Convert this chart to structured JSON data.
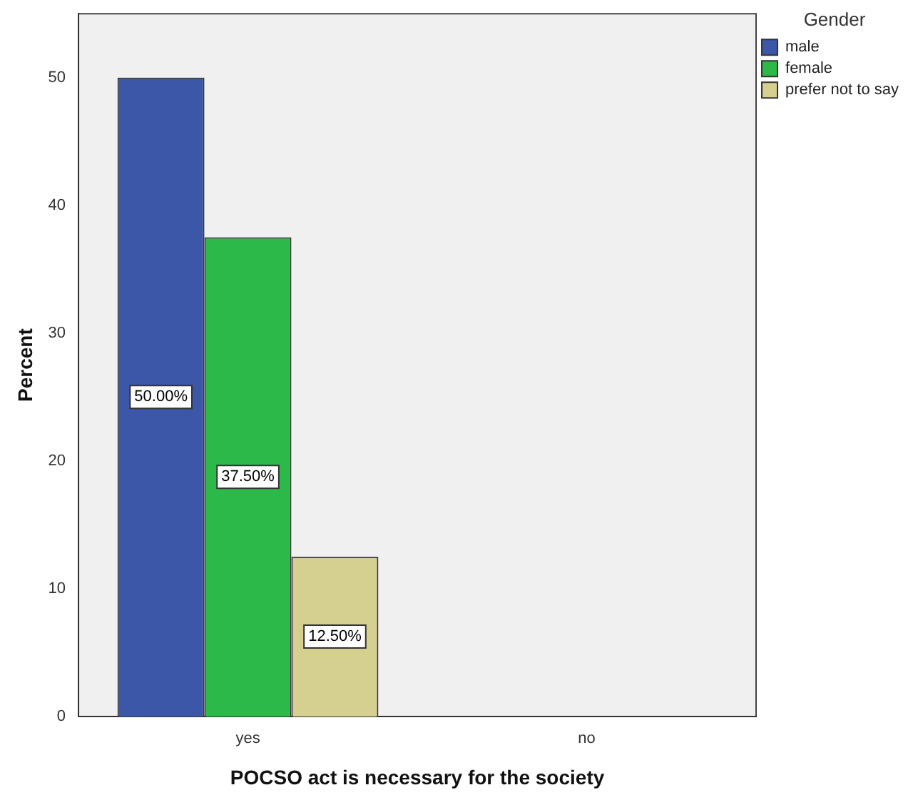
{
  "chart_data": {
    "type": "bar",
    "xlabel": "POCSO act is necessary for the society",
    "ylabel": "Percent",
    "legend_title": "Gender",
    "legend": "top right",
    "grid": false,
    "categories": [
      "yes",
      "no"
    ],
    "series": [
      {
        "name": "male",
        "color": "#3c56a8",
        "values": [
          50,
          null
        ],
        "value_labels": [
          "50.00%",
          null
        ]
      },
      {
        "name": "female",
        "color": "#2db84a",
        "values": [
          37.5,
          null
        ],
        "value_labels": [
          "37.50%",
          null
        ]
      },
      {
        "name": "prefer not to say",
        "color": "#d5d08f",
        "values": [
          12.5,
          null
        ],
        "value_labels": [
          "12.50%",
          null
        ]
      }
    ],
    "ylim": [
      0,
      55
    ],
    "yticks": [
      0,
      10,
      20,
      30,
      40,
      50
    ]
  }
}
